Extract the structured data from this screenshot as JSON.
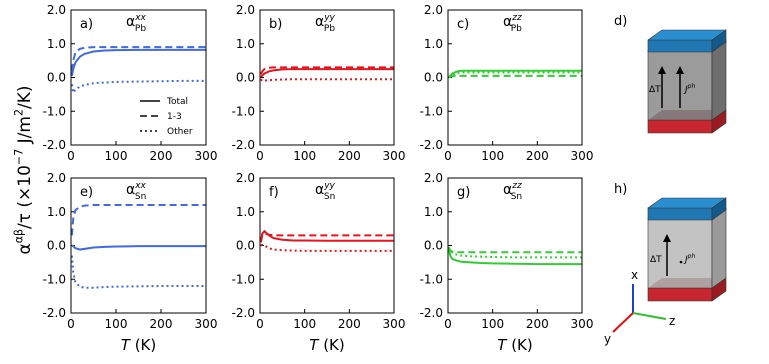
{
  "figure": {
    "ylabel": [
      {
        "text": "α"
      },
      {
        "text": "αβ",
        "sup": true
      },
      {
        "text": "/τ (×10"
      },
      {
        "text": "−7",
        "sup": true
      },
      {
        "text": " J/m"
      },
      {
        "text": "2",
        "sup": true
      },
      {
        "text": "/K)"
      }
    ]
  },
  "chart_data": [
    {
      "type": "line",
      "label": "a)",
      "title": {
        "base": "α",
        "sup": "xx",
        "sub": "Pb"
      },
      "legend": true,
      "legend_position": "lower right",
      "x": [
        2,
        5,
        10,
        20,
        30,
        50,
        75,
        100,
        150,
        200,
        250,
        300
      ],
      "series": [
        {
          "name": "Total",
          "color": "#4169e1",
          "style": "solid",
          "values": [
            0.05,
            0.25,
            0.45,
            0.62,
            0.7,
            0.77,
            0.8,
            0.81,
            0.82,
            0.82,
            0.82,
            0.82
          ]
        },
        {
          "name": "1-3",
          "color": "#4169e1",
          "style": "dashed",
          "values": [
            0.2,
            0.5,
            0.75,
            0.85,
            0.88,
            0.9,
            0.9,
            0.9,
            0.9,
            0.9,
            0.9,
            0.9
          ]
        },
        {
          "name": "Other",
          "color": "#4169e1",
          "style": "dotted",
          "values": [
            -0.2,
            -0.45,
            -0.35,
            -0.27,
            -0.22,
            -0.17,
            -0.15,
            -0.13,
            -0.12,
            -0.11,
            -0.1,
            -0.1
          ]
        }
      ],
      "xlim": [
        0,
        300
      ],
      "xticks": [
        0,
        100,
        200,
        300
      ],
      "ylim": [
        -2,
        2
      ],
      "yticks": [
        {
          "value": -2,
          "label": "-2.0"
        },
        {
          "value": -1,
          "label": "-1.0"
        },
        {
          "value": 0,
          "label": "0.0"
        },
        {
          "value": 1,
          "label": "1.0"
        },
        {
          "value": 2,
          "label": "2.0"
        }
      ]
    },
    {
      "type": "line",
      "label": "b)",
      "title": {
        "base": "α",
        "sup": "yy",
        "sub": "Pb"
      },
      "x": [
        2,
        5,
        10,
        20,
        30,
        50,
        75,
        100,
        150,
        200,
        250,
        300
      ],
      "series": [
        {
          "name": "Total",
          "color": "#e8131b",
          "style": "solid",
          "values": [
            0.02,
            0.06,
            0.12,
            0.18,
            0.21,
            0.24,
            0.25,
            0.25,
            0.25,
            0.25,
            0.25,
            0.25
          ]
        },
        {
          "name": "1-3",
          "color": "#e8131b",
          "style": "dashed",
          "values": [
            0.1,
            0.18,
            0.25,
            0.29,
            0.3,
            0.3,
            0.3,
            0.3,
            0.3,
            0.3,
            0.3,
            0.3
          ]
        },
        {
          "name": "Other",
          "color": "#e8131b",
          "style": "dotted",
          "values": [
            -0.05,
            -0.1,
            -0.09,
            -0.08,
            -0.07,
            -0.06,
            -0.05,
            -0.05,
            -0.05,
            -0.05,
            -0.05,
            -0.05
          ]
        }
      ],
      "xlim": [
        0,
        300
      ],
      "xticks": [
        0,
        100,
        200,
        300
      ],
      "ylim": [
        -2,
        2
      ],
      "yticks": [
        {
          "value": -2,
          "label": "-2.0"
        },
        {
          "value": -1,
          "label": "-1.0"
        },
        {
          "value": 0,
          "label": "0.0"
        },
        {
          "value": 1,
          "label": "1.0"
        },
        {
          "value": 2,
          "label": "2.0"
        }
      ]
    },
    {
      "type": "line",
      "label": "c)",
      "title": {
        "base": "α",
        "sup": "zz",
        "sub": "Pb"
      },
      "x": [
        2,
        5,
        10,
        20,
        30,
        50,
        75,
        100,
        150,
        200,
        250,
        300
      ],
      "series": [
        {
          "name": "Total",
          "color": "#32cd32",
          "style": "solid",
          "values": [
            0.0,
            0.05,
            0.12,
            0.18,
            0.2,
            0.2,
            0.2,
            0.2,
            0.2,
            0.2,
            0.2,
            0.2
          ]
        },
        {
          "name": "1-3",
          "color": "#32cd32",
          "style": "dashed",
          "values": [
            0.0,
            0.02,
            0.04,
            0.05,
            0.05,
            0.05,
            0.05,
            0.05,
            0.05,
            0.05,
            0.05,
            0.05
          ]
        },
        {
          "name": "Other",
          "color": "#32cd32",
          "style": "dotted",
          "values": [
            0.0,
            0.04,
            0.09,
            0.13,
            0.15,
            0.15,
            0.15,
            0.15,
            0.15,
            0.15,
            0.15,
            0.15
          ]
        }
      ],
      "xlim": [
        0,
        300
      ],
      "xticks": [
        0,
        100,
        200,
        300
      ],
      "ylim": [
        -2,
        2
      ],
      "yticks": [
        {
          "value": -2,
          "label": "-2.0"
        },
        {
          "value": -1,
          "label": "-1.0"
        },
        {
          "value": 0,
          "label": "0.0"
        },
        {
          "value": 1,
          "label": "1.0"
        },
        {
          "value": 2,
          "label": "2.0"
        }
      ]
    },
    {
      "type": "line",
      "label": "e)",
      "title": {
        "base": "α",
        "sup": "xx",
        "sub": "Sn"
      },
      "xlabel": [
        {
          "text": "T",
          "italic": true
        },
        {
          "text": " (K)"
        }
      ],
      "x": [
        2,
        5,
        10,
        20,
        30,
        50,
        75,
        100,
        150,
        200,
        250,
        300
      ],
      "series": [
        {
          "name": "Total",
          "color": "#4169e1",
          "style": "solid",
          "values": [
            0.0,
            -0.02,
            -0.08,
            -0.12,
            -0.1,
            -0.06,
            -0.04,
            -0.03,
            -0.02,
            -0.02,
            -0.02,
            -0.02
          ]
        },
        {
          "name": "1-3",
          "color": "#4169e1",
          "style": "dashed",
          "values": [
            0.3,
            0.8,
            1.05,
            1.15,
            1.18,
            1.2,
            1.2,
            1.2,
            1.2,
            1.2,
            1.2,
            1.2
          ]
        },
        {
          "name": "Other",
          "color": "#4169e1",
          "style": "dotted",
          "values": [
            -0.3,
            -0.8,
            -1.1,
            -1.22,
            -1.25,
            -1.25,
            -1.23,
            -1.22,
            -1.21,
            -1.2,
            -1.2,
            -1.2
          ]
        }
      ],
      "xlim": [
        0,
        300
      ],
      "xticks": [
        0,
        100,
        200,
        300
      ],
      "ylim": [
        -2,
        2
      ],
      "yticks": [
        {
          "value": -2,
          "label": "-2.0"
        },
        {
          "value": -1,
          "label": "-1.0"
        },
        {
          "value": 0,
          "label": "0.0"
        },
        {
          "value": 1,
          "label": "1.0"
        },
        {
          "value": 2,
          "label": "2.0"
        }
      ]
    },
    {
      "type": "line",
      "label": "f)",
      "title": {
        "base": "α",
        "sup": "yy",
        "sub": "Sn"
      },
      "xlabel": [
        {
          "text": "T",
          "italic": true
        },
        {
          "text": " (K)"
        }
      ],
      "x": [
        2,
        5,
        10,
        20,
        30,
        50,
        75,
        100,
        150,
        200,
        250,
        300
      ],
      "series": [
        {
          "name": "Total",
          "color": "#e8131b",
          "style": "solid",
          "values": [
            0.1,
            0.35,
            0.42,
            0.3,
            0.22,
            0.17,
            0.15,
            0.15,
            0.14,
            0.14,
            0.14,
            0.14
          ]
        },
        {
          "name": "1-3",
          "color": "#e8131b",
          "style": "dashed",
          "values": [
            0.1,
            0.3,
            0.36,
            0.32,
            0.3,
            0.3,
            0.3,
            0.3,
            0.3,
            0.3,
            0.3,
            0.3
          ]
        },
        {
          "name": "Other",
          "color": "#e8131b",
          "style": "dotted",
          "values": [
            0.0,
            0.02,
            0.0,
            -0.08,
            -0.12,
            -0.14,
            -0.15,
            -0.16,
            -0.16,
            -0.16,
            -0.16,
            -0.16
          ]
        }
      ],
      "xlim": [
        0,
        300
      ],
      "xticks": [
        0,
        100,
        200,
        300
      ],
      "ylim": [
        -2,
        2
      ],
      "yticks": [
        {
          "value": -2,
          "label": "-2.0"
        },
        {
          "value": -1,
          "label": "-1.0"
        },
        {
          "value": 0,
          "label": "0.0"
        },
        {
          "value": 1,
          "label": "1.0"
        },
        {
          "value": 2,
          "label": "2.0"
        }
      ]
    },
    {
      "type": "line",
      "label": "g)",
      "title": {
        "base": "α",
        "sup": "zz",
        "sub": "Sn"
      },
      "xlabel": [
        {
          "text": "T",
          "italic": true
        },
        {
          "text": " (K)"
        }
      ],
      "x": [
        2,
        5,
        10,
        20,
        30,
        50,
        75,
        100,
        150,
        200,
        250,
        300
      ],
      "series": [
        {
          "name": "Total",
          "color": "#32cd32",
          "style": "solid",
          "values": [
            -0.1,
            -0.3,
            -0.4,
            -0.45,
            -0.48,
            -0.5,
            -0.52,
            -0.53,
            -0.54,
            -0.55,
            -0.55,
            -0.55
          ]
        },
        {
          "name": "1-3",
          "color": "#32cd32",
          "style": "dashed",
          "values": [
            -0.05,
            -0.15,
            -0.18,
            -0.2,
            -0.2,
            -0.2,
            -0.2,
            -0.2,
            -0.2,
            -0.2,
            -0.2,
            -0.2
          ]
        },
        {
          "name": "Other",
          "color": "#32cd32",
          "style": "dotted",
          "values": [
            -0.05,
            -0.15,
            -0.22,
            -0.27,
            -0.3,
            -0.32,
            -0.33,
            -0.34,
            -0.35,
            -0.35,
            -0.35,
            -0.35
          ]
        }
      ],
      "xlim": [
        0,
        300
      ],
      "xticks": [
        0,
        100,
        200,
        300
      ],
      "ylim": [
        -2,
        2
      ],
      "yticks": [
        {
          "value": -2,
          "label": "-2.0"
        },
        {
          "value": -1,
          "label": "-1.0"
        },
        {
          "value": 0,
          "label": "0.0"
        },
        {
          "value": 1,
          "label": "1.0"
        },
        {
          "value": 2,
          "label": "2.0"
        }
      ]
    }
  ],
  "diagrams": [
    {
      "label": "d)",
      "dT": "ΔT",
      "j": "J",
      "j_sup": "ph"
    },
    {
      "label": "h)",
      "dT": "ΔT",
      "j": "J",
      "j_sup": "ph",
      "axes": [
        "x",
        "y",
        "z"
      ]
    }
  ]
}
